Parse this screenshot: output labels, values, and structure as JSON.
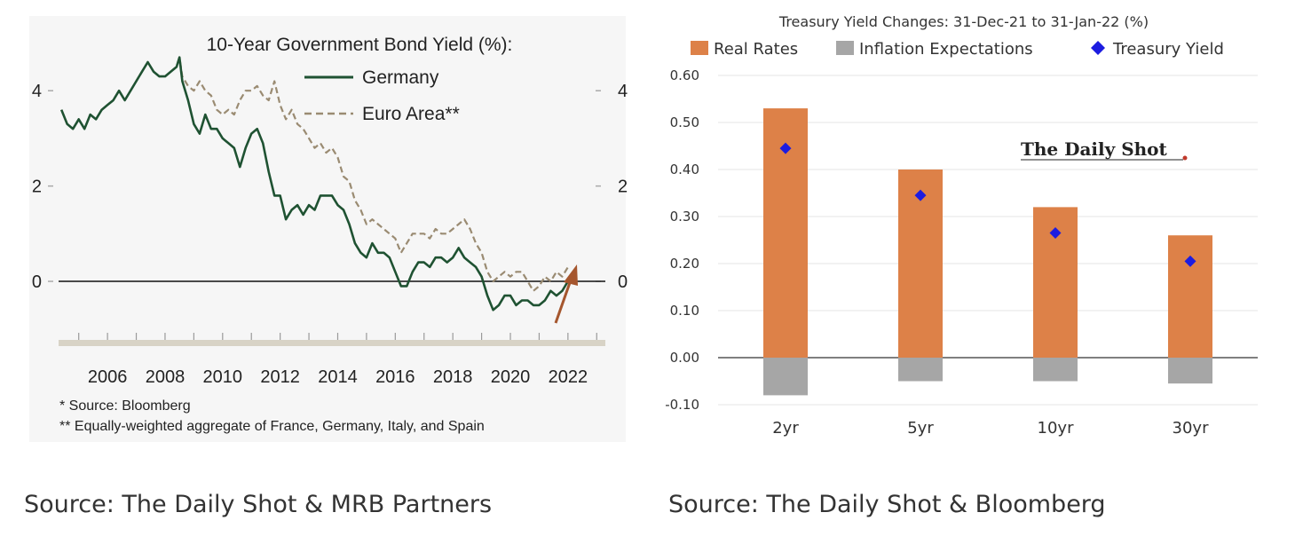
{
  "left_source": "Source: The Daily Shot & MRB Partners",
  "right_source": "Source: The Daily Shot & Bloomberg",
  "chart_data": [
    {
      "type": "line",
      "title": "10-Year Government Bond Yield (%):",
      "xlabel": "",
      "ylabel": "",
      "x_ticks": [
        "2006",
        "2008",
        "2010",
        "2012",
        "2014",
        "2016",
        "2018",
        "2020",
        "2022"
      ],
      "y_ticks": [
        "0",
        "2",
        "4"
      ],
      "xlim": [
        2004.3,
        2023.3
      ],
      "ylim": [
        -0.8,
        4.6
      ],
      "legend_position": "top",
      "footnotes": [
        "*  Source: Bloomberg",
        "** Equally-weighted aggregate of France, Germany, Italy, and Spain"
      ],
      "series": [
        {
          "name": "Germany",
          "color": "#1f5232",
          "x": [
            2004.4,
            2004.6,
            2004.8,
            2005.0,
            2005.2,
            2005.4,
            2005.6,
            2005.8,
            2006.0,
            2006.2,
            2006.4,
            2006.6,
            2006.8,
            2007.0,
            2007.2,
            2007.4,
            2007.6,
            2007.8,
            2008.0,
            2008.2,
            2008.4,
            2008.5,
            2008.6,
            2008.8,
            2009.0,
            2009.2,
            2009.4,
            2009.6,
            2009.8,
            2010.0,
            2010.2,
            2010.4,
            2010.6,
            2010.8,
            2011.0,
            2011.2,
            2011.4,
            2011.6,
            2011.8,
            2012.0,
            2012.2,
            2012.4,
            2012.6,
            2012.8,
            2013.0,
            2013.2,
            2013.4,
            2013.6,
            2013.8,
            2014.0,
            2014.2,
            2014.4,
            2014.6,
            2014.8,
            2015.0,
            2015.2,
            2015.4,
            2015.6,
            2015.8,
            2016.0,
            2016.2,
            2016.4,
            2016.6,
            2016.8,
            2017.0,
            2017.2,
            2017.4,
            2017.6,
            2017.8,
            2018.0,
            2018.2,
            2018.4,
            2018.6,
            2018.8,
            2019.0,
            2019.2,
            2019.4,
            2019.6,
            2019.8,
            2020.0,
            2020.2,
            2020.4,
            2020.6,
            2020.8,
            2021.0,
            2021.2,
            2021.4,
            2021.6,
            2021.8,
            2022.0
          ],
          "values": [
            3.6,
            3.3,
            3.2,
            3.4,
            3.2,
            3.5,
            3.4,
            3.6,
            3.7,
            3.8,
            4.0,
            3.8,
            4.0,
            4.2,
            4.4,
            4.6,
            4.4,
            4.3,
            4.3,
            4.4,
            4.5,
            4.7,
            4.2,
            3.8,
            3.3,
            3.1,
            3.5,
            3.2,
            3.2,
            3.0,
            2.9,
            2.8,
            2.4,
            2.8,
            3.1,
            3.2,
            2.9,
            2.3,
            1.8,
            1.8,
            1.3,
            1.5,
            1.6,
            1.4,
            1.6,
            1.5,
            1.8,
            1.8,
            1.8,
            1.6,
            1.5,
            1.2,
            0.8,
            0.6,
            0.5,
            0.8,
            0.6,
            0.6,
            0.5,
            0.2,
            -0.1,
            -0.1,
            0.2,
            0.4,
            0.4,
            0.3,
            0.5,
            0.5,
            0.4,
            0.5,
            0.7,
            0.5,
            0.4,
            0.3,
            0.1,
            -0.3,
            -0.6,
            -0.5,
            -0.3,
            -0.3,
            -0.5,
            -0.4,
            -0.4,
            -0.5,
            -0.5,
            -0.4,
            -0.2,
            -0.3,
            -0.2,
            0.0
          ]
        },
        {
          "name": "Euro Area**",
          "color": "#9a8b72",
          "x": [
            2004.4,
            2004.6,
            2004.8,
            2005.0,
            2005.2,
            2005.4,
            2005.6,
            2005.8,
            2006.0,
            2006.2,
            2006.4,
            2006.6,
            2006.8,
            2007.0,
            2007.2,
            2007.4,
            2007.6,
            2007.8,
            2008.0,
            2008.2,
            2008.4,
            2008.5,
            2008.6,
            2008.8,
            2009.0,
            2009.2,
            2009.4,
            2009.6,
            2009.8,
            2010.0,
            2010.2,
            2010.4,
            2010.6,
            2010.8,
            2011.0,
            2011.2,
            2011.4,
            2011.6,
            2011.8,
            2012.0,
            2012.2,
            2012.4,
            2012.6,
            2012.8,
            2013.0,
            2013.2,
            2013.4,
            2013.6,
            2013.8,
            2014.0,
            2014.2,
            2014.4,
            2014.6,
            2014.8,
            2015.0,
            2015.2,
            2015.4,
            2015.6,
            2015.8,
            2016.0,
            2016.2,
            2016.4,
            2016.6,
            2016.8,
            2017.0,
            2017.2,
            2017.4,
            2017.6,
            2017.8,
            2018.0,
            2018.2,
            2018.4,
            2018.6,
            2018.8,
            2019.0,
            2019.2,
            2019.4,
            2019.6,
            2019.8,
            2020.0,
            2020.2,
            2020.4,
            2020.6,
            2020.8,
            2021.0,
            2021.2,
            2021.4,
            2021.6,
            2021.8,
            2022.0
          ],
          "values": [
            3.6,
            3.3,
            3.2,
            3.4,
            3.2,
            3.5,
            3.4,
            3.6,
            3.7,
            3.8,
            4.0,
            3.8,
            4.0,
            4.2,
            4.4,
            4.6,
            4.4,
            4.3,
            4.3,
            4.4,
            4.5,
            4.7,
            4.3,
            4.1,
            4.0,
            4.2,
            4.0,
            3.9,
            3.6,
            3.5,
            3.6,
            3.5,
            3.8,
            4.0,
            4.0,
            4.1,
            3.9,
            3.8,
            4.2,
            3.7,
            3.4,
            3.6,
            3.3,
            3.2,
            3.0,
            2.8,
            2.9,
            2.7,
            2.8,
            2.6,
            2.2,
            2.1,
            1.7,
            1.5,
            1.2,
            1.3,
            1.2,
            1.1,
            1.0,
            0.9,
            0.6,
            0.8,
            1.0,
            1.0,
            1.0,
            0.9,
            1.1,
            1.0,
            1.0,
            1.1,
            1.2,
            1.3,
            1.1,
            0.8,
            0.6,
            0.2,
            0.0,
            0.1,
            0.2,
            0.1,
            0.2,
            0.2,
            0.0,
            -0.2,
            -0.1,
            0.1,
            0.0,
            0.2,
            0.1,
            0.3
          ]
        }
      ]
    },
    {
      "type": "bar",
      "title": "Treasury Yield Changes: 31-Dec-21 to 31-Jan-22 (%)",
      "xlabel": "",
      "ylabel": "",
      "categories": [
        "2yr",
        "5yr",
        "10yr",
        "30yr"
      ],
      "ylim": [
        -0.1,
        0.6
      ],
      "y_ticks": [
        "0.60",
        "0.50",
        "0.40",
        "0.30",
        "0.20",
        "0.10",
        "0.00",
        "-0.10"
      ],
      "legend_position": "top",
      "grid": true,
      "watermark": "The Daily Shot",
      "series": [
        {
          "name": "Real Rates",
          "color": "#dd8148",
          "values": [
            0.53,
            0.4,
            0.32,
            0.26
          ]
        },
        {
          "name": "Inflation Expectations",
          "color": "#a6a6a6",
          "values": [
            -0.08,
            -0.05,
            -0.05,
            -0.055
          ]
        },
        {
          "name": "Treasury Yield",
          "color": "#1c1ce0",
          "values": [
            0.445,
            0.345,
            0.265,
            0.205
          ]
        }
      ]
    }
  ]
}
